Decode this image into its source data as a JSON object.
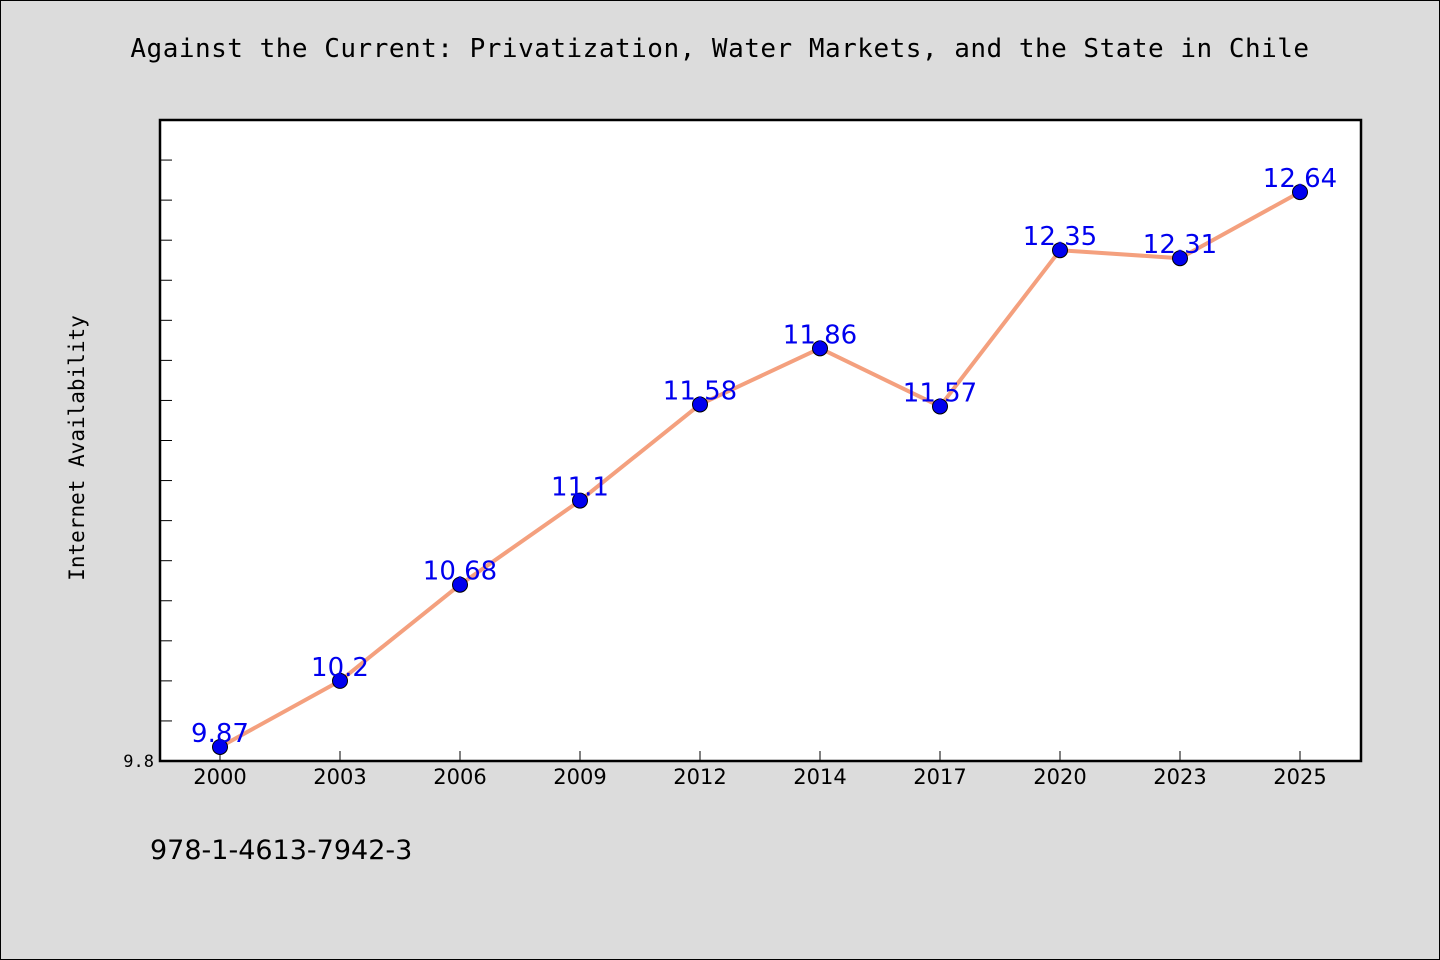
{
  "title": "Against the Current: Privatization, Water Markets, and the State in Chile",
  "isbn": "978-1-4613-7942-3",
  "chart_data": {
    "type": "line",
    "title": "Against the Current: Privatization, Water Markets, and the State in Chile",
    "xlabel": "",
    "ylabel": "Internet Availability",
    "categories": [
      "2000",
      "2003",
      "2006",
      "2009",
      "2012",
      "2014",
      "2017",
      "2020",
      "2023",
      "2025"
    ],
    "values": [
      9.87,
      10.2,
      10.68,
      11.1,
      11.58,
      11.86,
      11.57,
      12.35,
      12.31,
      12.64
    ],
    "data_labels": [
      "9.87",
      "10.2",
      "10.68",
      "11.1",
      "11.58",
      "11.86",
      "11.57",
      "12.35",
      "12.31",
      "12.64"
    ],
    "y_tick_labels": [
      "9.8"
    ],
    "ylim": [
      9.8,
      13.0
    ],
    "grid": false,
    "colors": {
      "line": "#f4a07e",
      "marker": "#0000ee",
      "label": "#0000ee",
      "background": "#dcdcdc",
      "plot_bg": "#ffffff"
    }
  }
}
